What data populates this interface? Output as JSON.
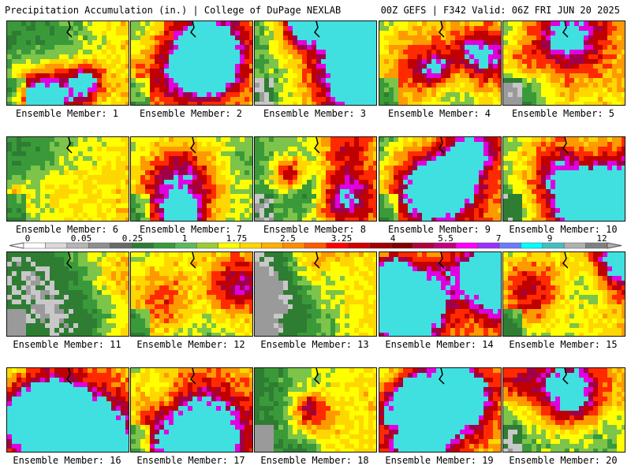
{
  "header": {
    "left_title": "Precipitation Accumulation (in.) | College of DuPage NEXLAB",
    "right_title": "00Z GEFS | F342 Valid: 06Z FRI JUN 20 2025"
  },
  "member_label_prefix": "Ensemble Member: ",
  "members": [
    {
      "label": "Ensemble Member: 1"
    },
    {
      "label": "Ensemble Member: 2"
    },
    {
      "label": "Ensemble Member: 3"
    },
    {
      "label": "Ensemble Member: 4"
    },
    {
      "label": "Ensemble Member: 5"
    },
    {
      "label": "Ensemble Member: 6"
    },
    {
      "label": "Ensemble Member: 7"
    },
    {
      "label": "Ensemble Member: 8"
    },
    {
      "label": "Ensemble Member: 9"
    },
    {
      "label": "Ensemble Member: 10"
    },
    {
      "label": "Ensemble Member: 11"
    },
    {
      "label": "Ensemble Member: 12"
    },
    {
      "label": "Ensemble Member: 13"
    },
    {
      "label": "Ensemble Member: 14"
    },
    {
      "label": "Ensemble Member: 15"
    },
    {
      "label": "Ensemble Member: 16"
    },
    {
      "label": "Ensemble Member: 17"
    },
    {
      "label": "Ensemble Member: 18"
    },
    {
      "label": "Ensemble Member: 19"
    },
    {
      "label": "Ensemble Member: 20"
    }
  ],
  "colorbar": {
    "tick_labels": [
      "0",
      "0.05",
      "0.25",
      "1",
      "1.75",
      "2.5",
      "3.25",
      "4",
      "5.5",
      "7",
      "9",
      "12"
    ],
    "colors": [
      "#ffffff",
      "#d9d9d9",
      "#b5b5b5",
      "#8f8f8f",
      "#696969",
      "#2e7d32",
      "#3a9a3a",
      "#5cb85c",
      "#9acd32",
      "#ffff00",
      "#ffd700",
      "#ffb000",
      "#ff8c00",
      "#ff5a00",
      "#ff0000",
      "#d00000",
      "#a00000",
      "#800000",
      "#b00040",
      "#c00080",
      "#ff00ff",
      "#9b30ff",
      "#6a7bff",
      "#00ffff",
      "#40c0c0",
      "#b0b0b0",
      "#808080"
    ]
  }
}
